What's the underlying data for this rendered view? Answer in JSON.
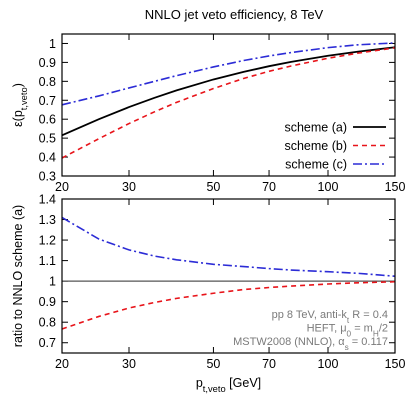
{
  "chart_data": [
    {
      "type": "line",
      "title": "NNLO jet veto efficiency, 8 TeV",
      "ylabel": "ε(p_{t,veto})",
      "xscale": "log",
      "xlim": [
        20,
        150
      ],
      "ylim": [
        0.3,
        1.05
      ],
      "xticks": [
        20,
        30,
        50,
        70,
        100,
        150
      ],
      "yticks": [
        0.3,
        0.4,
        0.5,
        0.6,
        0.7,
        0.8,
        0.9,
        1.0
      ],
      "ytick_labels": [
        "0.3",
        "0.4",
        "0.5",
        "0.6",
        "0.7",
        "0.8",
        "0.9",
        "1"
      ],
      "legend_position": "right-middle",
      "x": [
        20,
        25,
        30,
        35,
        40,
        50,
        60,
        70,
        80,
        100,
        120,
        150
      ],
      "series": [
        {
          "name": "scheme (a)",
          "color": "#000000",
          "style": "solid",
          "values": [
            0.515,
            0.6,
            0.664,
            0.713,
            0.752,
            0.81,
            0.85,
            0.88,
            0.903,
            0.935,
            0.957,
            0.98
          ]
        },
        {
          "name": "scheme (b)",
          "color": "#e8141a",
          "style": "dashed",
          "values": [
            0.395,
            0.497,
            0.577,
            0.639,
            0.689,
            0.762,
            0.815,
            0.853,
            0.881,
            0.922,
            0.949,
            0.977
          ]
        },
        {
          "name": "scheme (c)",
          "color": "#2c2cd6",
          "style": "dashdot",
          "values": [
            0.676,
            0.723,
            0.765,
            0.8,
            0.83,
            0.876,
            0.91,
            0.934,
            0.952,
            0.978,
            0.993,
            1.003
          ]
        }
      ]
    },
    {
      "type": "line",
      "xlabel": "p_{t,veto} [GeV]",
      "ylabel": "ratio to NNLO scheme (a)",
      "xscale": "log",
      "xlim": [
        20,
        150
      ],
      "ylim": [
        0.65,
        1.4
      ],
      "xticks": [
        20,
        30,
        50,
        70,
        100,
        150
      ],
      "yticks": [
        0.7,
        0.8,
        0.9,
        1.0,
        1.1,
        1.2,
        1.3,
        1.4
      ],
      "ytick_labels": [
        "0.7",
        "0.8",
        "0.9",
        "1",
        "1.1",
        "1.2",
        "1.3",
        "1.4"
      ],
      "reference_line": 1.0,
      "annotations": [
        "pp 8 TeV, anti-k_{t} R = 0.4",
        "HEFT, μ_{0} = m_{H}/2",
        "MSTW2008 (NNLO), α_{s} = 0.117"
      ],
      "x": [
        20,
        25,
        30,
        35,
        40,
        50,
        60,
        70,
        80,
        100,
        120,
        150
      ],
      "series": [
        {
          "color": "#e8141a",
          "style": "dashed",
          "values": [
            0.767,
            0.828,
            0.869,
            0.896,
            0.916,
            0.941,
            0.959,
            0.969,
            0.976,
            0.986,
            0.992,
            0.997
          ]
        },
        {
          "color": "#2c2cd6",
          "style": "dashdot",
          "values": [
            1.31,
            1.205,
            1.152,
            1.122,
            1.104,
            1.082,
            1.071,
            1.061,
            1.054,
            1.046,
            1.038,
            1.024
          ]
        }
      ]
    }
  ]
}
